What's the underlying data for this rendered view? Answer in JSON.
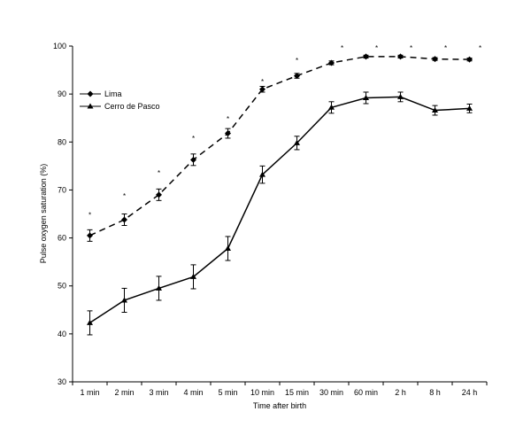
{
  "chart_data": {
    "type": "line",
    "title": "",
    "xlabel": "Time after birth",
    "ylabel": "Pulse oxygen saturation (%)",
    "ylim": [
      30,
      100
    ],
    "yticks": [
      30,
      40,
      50,
      60,
      70,
      80,
      90,
      100
    ],
    "grid": false,
    "legend_position": "top-left",
    "categories": [
      "1 min",
      "2 min",
      "3 min",
      "4 min",
      "5 min",
      "10 min",
      "15 min",
      "30 min",
      "60 min",
      "2 h",
      "8 h",
      "24 h"
    ],
    "series": [
      {
        "name": "Lima",
        "line_style": "dashed",
        "marker": "diamond",
        "values": [
          60.5,
          63.8,
          69.0,
          76.3,
          81.8,
          91.0,
          93.8,
          96.5,
          97.8,
          97.8,
          97.3,
          97.2
        ],
        "errors": [
          1.2,
          1.2,
          1.2,
          1.2,
          1.0,
          0.6,
          0.5,
          0.4,
          0.3,
          0.3,
          0.3,
          0.3
        ]
      },
      {
        "name": "Cerro de Pasco",
        "line_style": "solid",
        "marker": "triangle",
        "values": [
          42.3,
          47.0,
          49.5,
          51.9,
          57.8,
          73.2,
          79.8,
          87.2,
          89.2,
          89.4,
          86.6,
          87.0
        ],
        "errors": [
          2.5,
          2.5,
          2.5,
          2.5,
          2.5,
          1.8,
          1.4,
          1.2,
          1.2,
          1.0,
          1.0,
          0.9
        ]
      }
    ],
    "annotations": {
      "marker": "*",
      "values": [
        65.0,
        69.0,
        73.8,
        81.0,
        85.0,
        92.8,
        97.2,
        99.8,
        99.8,
        99.8,
        99.8,
        99.8
      ]
    }
  }
}
